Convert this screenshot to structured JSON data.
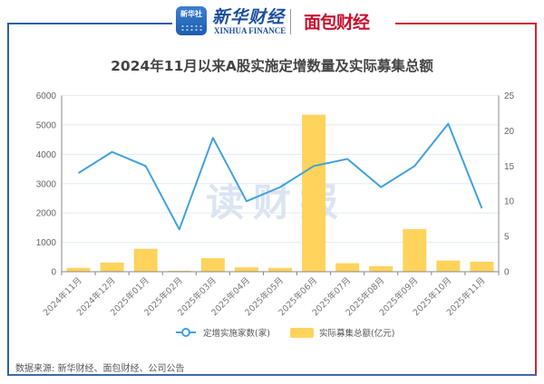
{
  "header": {
    "xinhua_badge_text": "新华社",
    "xinhua_name": "新华财经",
    "xinhua_sub": "XINHUA FINANCE",
    "mianbao_name": "面包财经"
  },
  "colors": {
    "frame_blue": "#2e5ea8",
    "frame_red": "#d1242f",
    "line": "#3fa2db",
    "bar": "#ffd35c",
    "watermark": "#dbe5f1"
  },
  "watermark": "读财报",
  "legend": {
    "line_label": "定增实施家数(家)",
    "bar_label": "实际募集总额(亿元)"
  },
  "source": "数据来源: 新华财经、面包财经、公司公告",
  "chart_data": {
    "type": "bar",
    "title": "2024年11月以来A股实施定增数量及实际募集总额",
    "categories": [
      "2024年11月",
      "2024年12月",
      "2025年01月",
      "2025年02月",
      "2025年03月",
      "2025年04月",
      "2025年05月",
      "2025年06月",
      "2025年07月",
      "2025年08月",
      "2025年09月",
      "2025年10月",
      "2025年11月"
    ],
    "series": [
      {
        "name": "实际募集总额(亿元)",
        "type": "bar",
        "axis": "left",
        "values": [
          130,
          310,
          780,
          30,
          460,
          150,
          130,
          5350,
          290,
          190,
          1450,
          380,
          340
        ]
      },
      {
        "name": "定增实施家数(家)",
        "type": "line",
        "axis": "right",
        "values": [
          14,
          17,
          15,
          6,
          19,
          10,
          12,
          15,
          16,
          12,
          15,
          21,
          9
        ]
      }
    ],
    "left_axis": {
      "ylim": [
        0,
        6000
      ],
      "ticks": [
        "0",
        "1000",
        "2000",
        "3000",
        "4000",
        "5000",
        "6000"
      ]
    },
    "right_axis": {
      "ylim": [
        0,
        25
      ],
      "ticks": [
        "0",
        "5",
        "10",
        "15",
        "20",
        "25"
      ]
    },
    "xlabel": "",
    "ylabel": "",
    "grid": true,
    "legend_position": "bottom"
  }
}
